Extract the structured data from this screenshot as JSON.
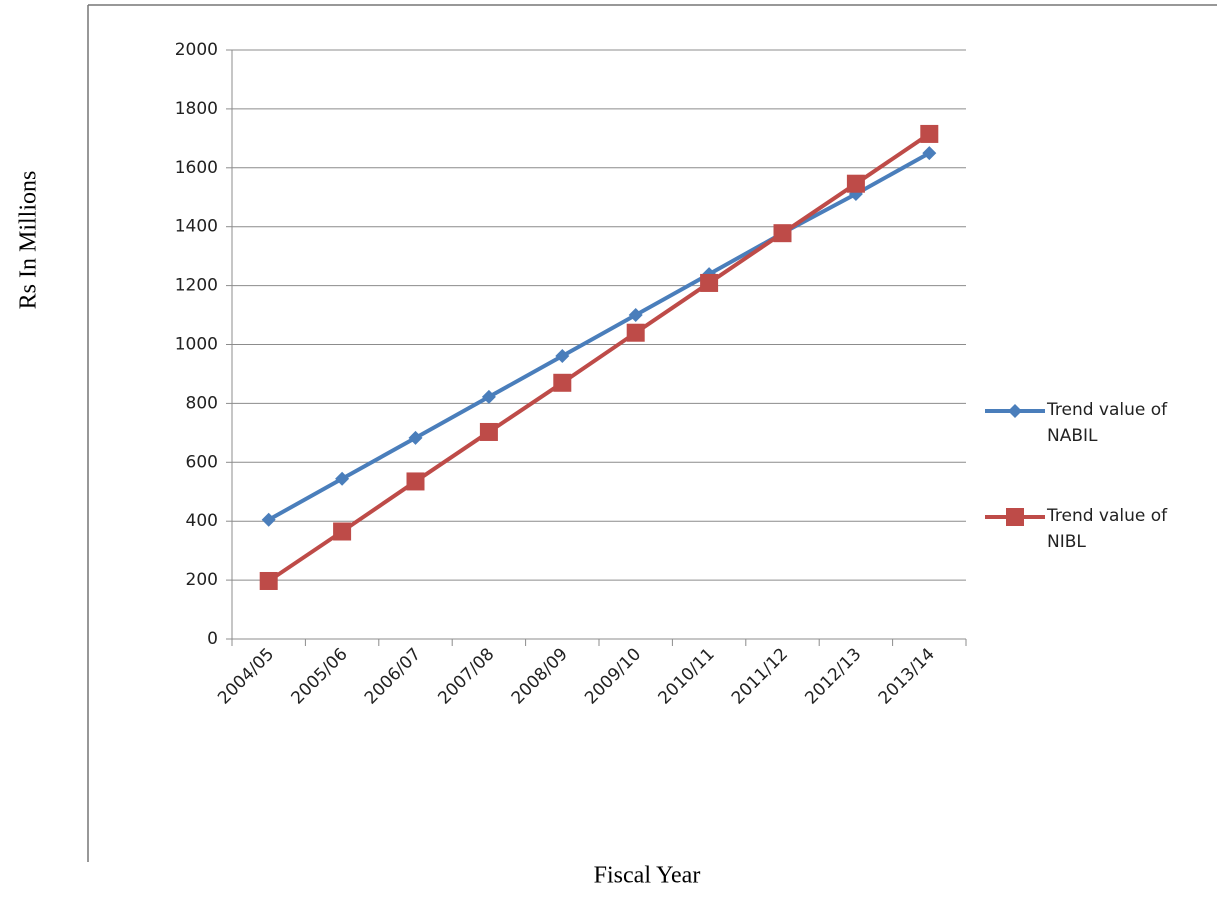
{
  "chart_data": {
    "type": "line",
    "y_label": "Rs In Millions",
    "x_label": "Fiscal Year",
    "categories": [
      "2004/05",
      "2005/06",
      "2006/07",
      "2007/08",
      "2008/09",
      "2009/10",
      "2010/11",
      "2011/12",
      "2012/13",
      "2013/14"
    ],
    "series": [
      {
        "name": "Trend value of NABIL",
        "color": "#4a7ebb",
        "marker": "diamond",
        "values": [
          405,
          544,
          683,
          822,
          961,
          1100,
          1239,
          1378,
          1511,
          1650
        ]
      },
      {
        "name": "Trend value of NIBL",
        "color": "#be4b48",
        "marker": "square",
        "values": [
          197,
          365,
          535,
          703,
          870,
          1040,
          1209,
          1378,
          1546,
          1715
        ]
      }
    ],
    "ylim": [
      0,
      2000
    ],
    "yticks": [
      0,
      200,
      400,
      600,
      800,
      1000,
      1200,
      1400,
      1600,
      1800,
      2000
    ],
    "grid": true
  }
}
